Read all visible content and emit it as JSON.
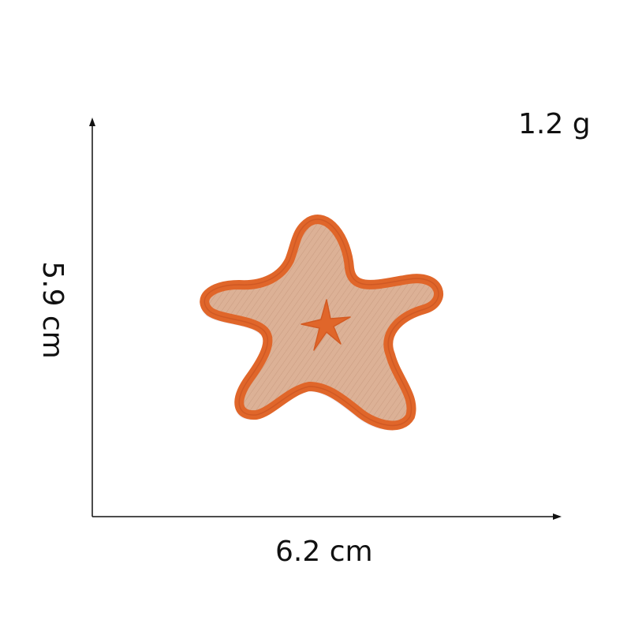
{
  "labels": {
    "weight": "1.2 g",
    "width": "6.2 cm",
    "height": "5.9 cm"
  },
  "colors": {
    "outline": "#e0662a",
    "fill": "#dcb196",
    "shadow": "#f0eef6",
    "axis": "#111111"
  },
  "icons": {
    "patch": "starfish-patch-icon",
    "center_mark": "small-star-icon"
  }
}
